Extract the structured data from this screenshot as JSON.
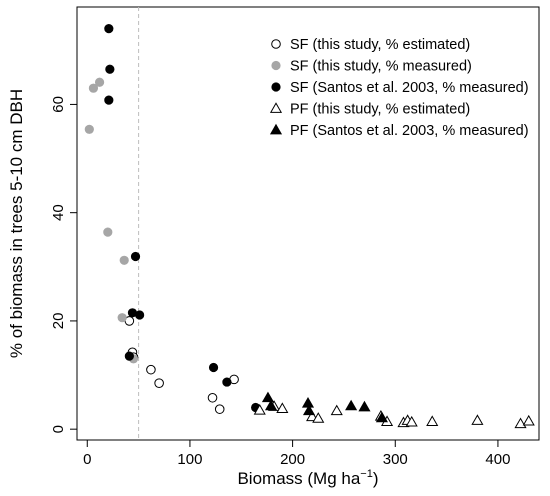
{
  "chart_data": {
    "type": "scatter",
    "xlabel": "Biomass (Mg ha",
    "xlabel_sup": "−1",
    "xlabel_close": ")",
    "ylabel": "% of biomass in trees 5-10 cm DBH",
    "xlim": [
      -10,
      440
    ],
    "ylim": [
      -2,
      78
    ],
    "xticks": [
      0,
      100,
      200,
      300,
      400
    ],
    "yticks": [
      0,
      20,
      40,
      60
    ],
    "reference_line_x": 50,
    "grid": false,
    "legend_position": "top-right",
    "series": [
      {
        "name": "SF (this study, % estimated)",
        "marker": "circle-open",
        "color": "#000000",
        "points": [
          [
            41,
            20.0
          ],
          [
            44,
            14.2
          ],
          [
            45,
            13.3
          ],
          [
            62,
            11.0
          ],
          [
            70,
            8.5
          ],
          [
            122,
            5.8
          ],
          [
            129,
            3.7
          ],
          [
            143,
            9.2
          ]
        ]
      },
      {
        "name": "SF (this study, % measured)",
        "marker": "circle-filled",
        "color": "#a6a6a6",
        "points": [
          [
            2,
            55.4
          ],
          [
            6,
            63.0
          ],
          [
            12,
            64.1
          ],
          [
            20,
            36.4
          ],
          [
            36,
            31.2
          ],
          [
            34,
            20.6
          ],
          [
            45,
            13.0
          ]
        ]
      },
      {
        "name": "SF (Santos et al. 2003, % measured)",
        "marker": "circle-filled",
        "color": "#000000",
        "points": [
          [
            21,
            74.0
          ],
          [
            22,
            66.5
          ],
          [
            21,
            60.8
          ],
          [
            47,
            31.9
          ],
          [
            44,
            21.5
          ],
          [
            51,
            21.1
          ],
          [
            41,
            13.5
          ],
          [
            123,
            11.4
          ],
          [
            136,
            8.7
          ],
          [
            164,
            4.0
          ]
        ]
      },
      {
        "name": "PF (this study, % estimated)",
        "marker": "triangle-open",
        "color": "#000000",
        "points": [
          [
            168,
            3.5
          ],
          [
            182,
            4.2
          ],
          [
            190,
            3.8
          ],
          [
            219,
            2.3
          ],
          [
            225,
            2.0
          ],
          [
            243,
            3.4
          ],
          [
            286,
            2.4
          ],
          [
            292,
            1.4
          ],
          [
            308,
            1.2
          ],
          [
            312,
            1.6
          ],
          [
            316,
            1.3
          ],
          [
            336,
            1.4
          ],
          [
            380,
            1.6
          ],
          [
            422,
            1.0
          ],
          [
            430,
            1.5
          ]
        ]
      },
      {
        "name": "PF (Santos et al. 2003, % measured)",
        "marker": "triangle-filled",
        "color": "#000000",
        "points": [
          [
            176,
            5.8
          ],
          [
            179,
            4.3
          ],
          [
            215,
            4.8
          ],
          [
            216,
            3.4
          ],
          [
            257,
            4.3
          ],
          [
            270,
            4.1
          ],
          [
            287,
            2.1
          ]
        ]
      }
    ]
  }
}
